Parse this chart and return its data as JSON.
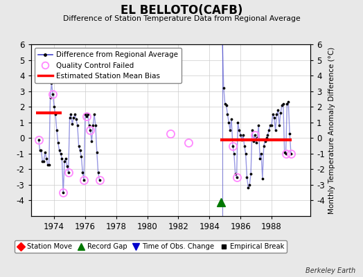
{
  "title": "EL BELLOTO(CAFB)",
  "subtitle": "Difference of Station Temperature Data from Regional Average",
  "ylabel_right": "Monthly Temperature Anomaly Difference (°C)",
  "background_color": "#e8e8e8",
  "plot_bg_color": "#ffffff",
  "xlim": [
    1972.5,
    1990.5
  ],
  "ylim": [
    -5,
    6
  ],
  "yticks": [
    -4,
    -3,
    -2,
    -1,
    0,
    1,
    2,
    3,
    4,
    5,
    6
  ],
  "xticks": [
    1974,
    1976,
    1978,
    1980,
    1982,
    1984,
    1986,
    1988
  ],
  "berkeley_earth_text": "Berkeley Earth",
  "line_color": "#4444cc",
  "line_alpha": 0.55,
  "qc_color": "#ff88ff",
  "bias_color": "#ff0000",
  "bias_linewidth": 3,
  "series1_x": [
    1973.0,
    1973.083,
    1973.167,
    1973.25,
    1973.333,
    1973.417,
    1973.5,
    1973.583,
    1973.667,
    1973.75,
    1973.833,
    1973.917,
    1974.0,
    1974.083,
    1974.167,
    1974.25,
    1974.333,
    1974.417,
    1974.5,
    1974.583,
    1974.667,
    1974.75,
    1974.833,
    1974.917,
    1975.0,
    1975.083,
    1975.167,
    1975.25,
    1975.333,
    1975.417,
    1975.5,
    1975.583,
    1975.667,
    1975.75,
    1975.833,
    1975.917,
    1976.0,
    1976.083,
    1976.167,
    1976.25,
    1976.333,
    1976.417,
    1976.5,
    1976.583,
    1976.667,
    1976.75,
    1976.833,
    1976.917
  ],
  "series1_y": [
    -0.1,
    -0.8,
    -0.8,
    -1.5,
    -1.5,
    -0.9,
    -1.3,
    -1.7,
    -1.7,
    2.6,
    3.5,
    2.8,
    2.0,
    1.5,
    0.5,
    -0.3,
    -0.8,
    -1.0,
    -1.3,
    -3.5,
    -1.5,
    -1.3,
    -1.8,
    -2.2,
    1.3,
    1.5,
    0.9,
    1.3,
    1.5,
    1.2,
    0.8,
    -0.5,
    -0.8,
    -1.2,
    -2.2,
    -2.7,
    1.5,
    1.4,
    1.5,
    0.8,
    0.5,
    -0.2,
    0.8,
    1.5,
    0.8,
    -0.9,
    -2.2,
    -2.7
  ],
  "series2_x": [
    1984.833,
    1984.917,
    1985.0,
    1985.083,
    1985.167,
    1985.25,
    1985.333,
    1985.417,
    1985.5,
    1985.583,
    1985.667,
    1985.75,
    1985.833,
    1985.917,
    1986.0,
    1986.083,
    1986.167,
    1986.25,
    1986.333,
    1986.417,
    1986.5,
    1986.583,
    1986.667,
    1986.75,
    1986.833,
    1986.917,
    1987.0,
    1987.083,
    1987.167,
    1987.25,
    1987.333,
    1987.417,
    1987.5,
    1987.583,
    1987.667,
    1987.75,
    1987.833,
    1987.917,
    1988.0,
    1988.083,
    1988.167,
    1988.25,
    1988.333,
    1988.417,
    1988.5,
    1988.583,
    1988.667,
    1988.75,
    1988.833,
    1988.917,
    1989.0,
    1989.083,
    1989.167,
    1989.25
  ],
  "series2_y": [
    6.2,
    3.2,
    2.2,
    2.1,
    1.5,
    1.0,
    0.5,
    1.2,
    -0.5,
    -1.0,
    -2.3,
    -2.5,
    1.0,
    0.5,
    0.2,
    -0.1,
    0.2,
    -0.5,
    -1.0,
    -2.5,
    -3.2,
    -3.0,
    -2.3,
    0.5,
    -0.2,
    0.2,
    -0.3,
    0.0,
    0.8,
    -1.3,
    -1.0,
    -2.6,
    -0.5,
    -0.2,
    0.0,
    0.2,
    0.5,
    0.8,
    0.8,
    1.5,
    1.3,
    0.5,
    1.5,
    1.8,
    0.8,
    1.6,
    2.1,
    2.2,
    -0.9,
    -1.0,
    2.2,
    2.3,
    0.3,
    -1.0
  ],
  "qc_failed_points": [
    [
      1973.0,
      -0.1
    ],
    [
      1973.917,
      2.8
    ],
    [
      1974.583,
      -3.5
    ],
    [
      1974.917,
      -2.2
    ],
    [
      1975.917,
      -2.7
    ],
    [
      1976.083,
      1.4
    ],
    [
      1976.333,
      0.5
    ],
    [
      1976.917,
      -2.7
    ],
    [
      1981.5,
      0.3
    ],
    [
      1982.667,
      -0.3
    ],
    [
      1985.5,
      -0.5
    ],
    [
      1985.75,
      -2.5
    ],
    [
      1986.917,
      0.2
    ],
    [
      1988.917,
      -1.0
    ],
    [
      1989.25,
      -1.0
    ]
  ],
  "bias_segments": [
    {
      "x_start": 1972.85,
      "x_end": 1974.5,
      "y": 1.6
    },
    {
      "x_start": 1984.7,
      "x_end": 1989.3,
      "y": -0.1
    }
  ],
  "record_gap_x": 1984.75,
  "record_gap_y": -4.1,
  "vertical_line_x": 1984.833
}
